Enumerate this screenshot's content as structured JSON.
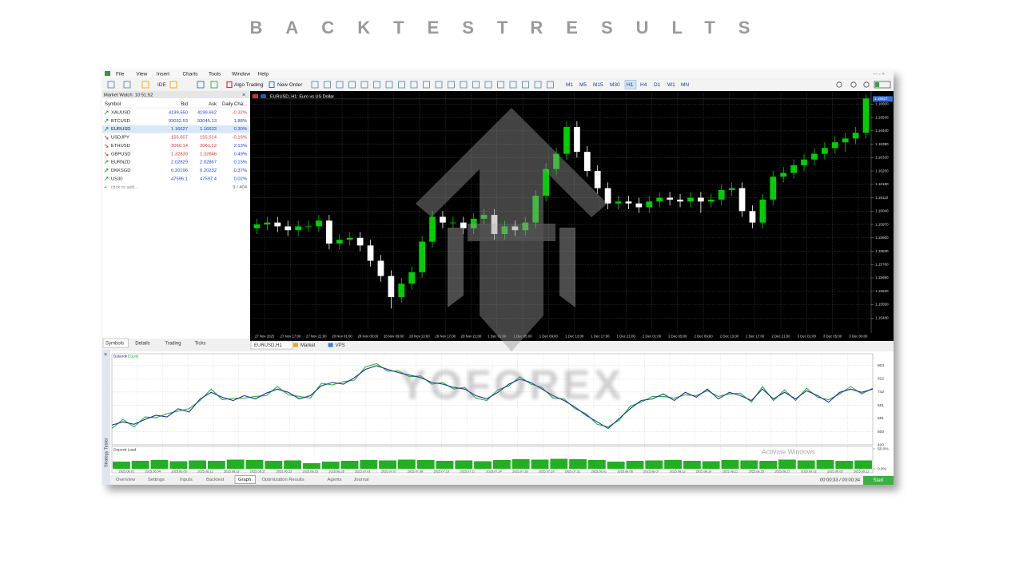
{
  "title": "BACKTEST RESULTS",
  "menu": [
    "File",
    "View",
    "Insert",
    "Charts",
    "Tools",
    "Window",
    "Help"
  ],
  "toolbar": {
    "ide": "IDE",
    "algo": "Algo Trading",
    "order": "New Order",
    "timeframes": [
      "M1",
      "M5",
      "M15",
      "M30",
      "H1",
      "H4",
      "D1",
      "W1",
      "MN"
    ],
    "active_timeframe": 4
  },
  "market_watch": {
    "header": "Market Watch: 10:51:52",
    "columns": [
      "Symbol",
      "Bid",
      "Ask",
      "Daily Cha..."
    ],
    "rows": [
      [
        "XAUUSD",
        "4199.550",
        "4199.662",
        "-0.32%"
      ],
      [
        "BTCUSD",
        "93032.53",
        "93045.13",
        "1.88%"
      ],
      [
        "EURUSD",
        "1.16627",
        "1.16633",
        "0.30%"
      ],
      [
        "USDJPY",
        "155.507",
        "155.514",
        "-0.16%"
      ],
      [
        "ETHUSD",
        "3060.14",
        "3061.12",
        "2.13%"
      ],
      [
        "GBPUSD",
        "1.32839",
        "1.32846",
        "0.49%"
      ],
      [
        "EURNZD",
        "2.02829",
        "2.02867",
        "0.15%"
      ],
      [
        "DKKSGD",
        "0.20196",
        "0.20232",
        "0.37%"
      ],
      [
        "US30",
        "47596.1",
        "47597.4",
        "0.02%"
      ]
    ],
    "directions": [
      "up",
      "up",
      "up",
      "down",
      "down",
      "down",
      "up",
      "up",
      "up"
    ],
    "selected_row": 2,
    "footer": "click to add...",
    "count": "9 / 404",
    "tabs": [
      "Symbols",
      "Details",
      "Trading",
      "Ticks"
    ]
  },
  "chart": {
    "title": "EURUSD, H1: Euro vs US Dollar",
    "current_price": 1.16627,
    "bull_color": "#00d000",
    "bear_color": "#ffffff",
    "ylim": [
      1.1541,
      1.1666
    ],
    "yticks": [
      {
        "value": 1.166,
        "label": "1.16600"
      },
      {
        "value": 1.1653,
        "label": "1.16530"
      },
      {
        "value": 1.1646,
        "label": "1.16460"
      },
      {
        "value": 1.1639,
        "label": "1.16390"
      },
      {
        "value": 1.1632,
        "label": "1.16320"
      },
      {
        "value": 1.1625,
        "label": "1.16250"
      },
      {
        "value": 1.1618,
        "label": "1.16180"
      },
      {
        "value": 1.1611,
        "label": "1.16110"
      },
      {
        "value": 1.1604,
        "label": "1.16040"
      },
      {
        "value": 1.1597,
        "label": "1.15970"
      },
      {
        "value": 1.159,
        "label": "1.15900"
      },
      {
        "value": 1.1583,
        "label": "1.15830"
      },
      {
        "value": 1.1576,
        "label": "1.15760"
      },
      {
        "value": 1.1569,
        "label": "1.15690"
      },
      {
        "value": 1.1562,
        "label": "1.15620"
      },
      {
        "value": 1.1555,
        "label": "1.15550"
      },
      {
        "value": 1.1548,
        "label": "1.15480"
      }
    ],
    "time_labels": [
      "27 Nov 2025",
      "27 Nov 17:00",
      "27 Nov 21:00",
      "28 Nov 01:00",
      "28 Nov 05:00",
      "28 Nov 09:00",
      "28 Nov 13:00",
      "28 Nov 17:00",
      "28 Nov 21:00",
      "1 Dec 01:00",
      "1 Dec 05:00",
      "1 Dec 09:00",
      "1 Dec 13:00",
      "1 Dec 17:00",
      "1 Dec 21:00",
      "2 Dec 01:00",
      "2 Dec 05:00",
      "2 Dec 09:00",
      "2 Dec 13:00",
      "2 Dec 17:00",
      "2 Dec 21:00",
      "3 Dec 01:00",
      "3 Dec 05:00",
      "3 Dec 09:00"
    ],
    "candles": [
      [
        1.1595,
        1.16,
        1.1592,
        1.1597
      ],
      [
        1.1597,
        1.1601,
        1.1594,
        1.1598
      ],
      [
        1.1598,
        1.1601,
        1.1593,
        1.1596
      ],
      [
        1.1596,
        1.1599,
        1.1591,
        1.1594
      ],
      [
        1.1594,
        1.1599,
        1.1591,
        1.1596
      ],
      [
        1.1596,
        1.1599,
        1.1593,
        1.1596
      ],
      [
        1.1596,
        1.1602,
        1.1593,
        1.1599
      ],
      [
        1.1599,
        1.1602,
        1.1584,
        1.1587
      ],
      [
        1.1587,
        1.1592,
        1.1584,
        1.1589
      ],
      [
        1.1589,
        1.1593,
        1.1586,
        1.159
      ],
      [
        1.159,
        1.1593,
        1.1583,
        1.1586
      ],
      [
        1.1586,
        1.1589,
        1.1575,
        1.1578
      ],
      [
        1.1578,
        1.1581,
        1.1567,
        1.157
      ],
      [
        1.157,
        1.1573,
        1.1553,
        1.1559
      ],
      [
        1.1559,
        1.1569,
        1.1556,
        1.1566
      ],
      [
        1.1566,
        1.1575,
        1.1563,
        1.1572
      ],
      [
        1.1572,
        1.1591,
        1.1569,
        1.1588
      ],
      [
        1.1588,
        1.1604,
        1.1585,
        1.1601
      ],
      [
        1.1601,
        1.1604,
        1.1595,
        1.1598
      ],
      [
        1.1598,
        1.1601,
        1.1595,
        1.1598
      ],
      [
        1.1598,
        1.1601,
        1.1592,
        1.1595
      ],
      [
        1.1595,
        1.1603,
        1.1592,
        1.16
      ],
      [
        1.16,
        1.1605,
        1.1597,
        1.1602
      ],
      [
        1.1602,
        1.1605,
        1.1589,
        1.1592
      ],
      [
        1.1592,
        1.1599,
        1.1589,
        1.1596
      ],
      [
        1.1596,
        1.1599,
        1.1591,
        1.1594
      ],
      [
        1.1594,
        1.1601,
        1.1591,
        1.1598
      ],
      [
        1.1598,
        1.1615,
        1.1595,
        1.1612
      ],
      [
        1.1612,
        1.1629,
        1.1609,
        1.1626
      ],
      [
        1.1626,
        1.1637,
        1.1623,
        1.1634
      ],
      [
        1.1634,
        1.1651,
        1.1631,
        1.1648
      ],
      [
        1.1648,
        1.1651,
        1.1632,
        1.1635
      ],
      [
        1.1635,
        1.1638,
        1.1622,
        1.1625
      ],
      [
        1.1625,
        1.1628,
        1.1613,
        1.1616
      ],
      [
        1.1616,
        1.1619,
        1.1605,
        1.1608
      ],
      [
        1.1608,
        1.1612,
        1.1605,
        1.1609
      ],
      [
        1.1609,
        1.1612,
        1.1605,
        1.1608
      ],
      [
        1.1608,
        1.1611,
        1.1603,
        1.1606
      ],
      [
        1.1606,
        1.1612,
        1.1603,
        1.1609
      ],
      [
        1.1609,
        1.1614,
        1.1606,
        1.1611
      ],
      [
        1.1611,
        1.1614,
        1.1607,
        1.161
      ],
      [
        1.161,
        1.1613,
        1.1606,
        1.1609
      ],
      [
        1.1609,
        1.1614,
        1.1606,
        1.1611
      ],
      [
        1.1611,
        1.1614,
        1.1603,
        1.1609
      ],
      [
        1.1609,
        1.1613,
        1.1606,
        1.161
      ],
      [
        1.161,
        1.1618,
        1.1607,
        1.1615
      ],
      [
        1.1615,
        1.1619,
        1.1612,
        1.1616
      ],
      [
        1.1616,
        1.1619,
        1.1601,
        1.1604
      ],
      [
        1.1604,
        1.1607,
        1.1595,
        1.1598
      ],
      [
        1.1598,
        1.1613,
        1.1595,
        1.161
      ],
      [
        1.161,
        1.1625,
        1.1607,
        1.1622
      ],
      [
        1.1622,
        1.1627,
        1.1619,
        1.1624
      ],
      [
        1.1624,
        1.1631,
        1.1621,
        1.1628
      ],
      [
        1.1628,
        1.1634,
        1.1625,
        1.1631
      ],
      [
        1.1631,
        1.1637,
        1.1628,
        1.1634
      ],
      [
        1.1634,
        1.164,
        1.1631,
        1.1637
      ],
      [
        1.1637,
        1.1643,
        1.1634,
        1.164
      ],
      [
        1.164,
        1.1645,
        1.1635,
        1.1642
      ],
      [
        1.1642,
        1.1648,
        1.1639,
        1.1645
      ],
      [
        1.1645,
        1.1665,
        1.1642,
        1.1663
      ]
    ]
  },
  "chart_tabs": [
    "EURUSD,H1",
    "Market",
    "VPS"
  ],
  "tester": {
    "side_label": "Strategy Tester",
    "series": [
      {
        "name": "Balance",
        "color": "#1c2fa8",
        "values": [
          540,
          560,
          545,
          575,
          600,
          590,
          640,
          620,
          700,
          740,
          710,
          690,
          720,
          700,
          735,
          760,
          740,
          700,
          720,
          780,
          800,
          790,
          830,
          880,
          903,
          880,
          860,
          845,
          830,
          800,
          790,
          770,
          760,
          720,
          700,
          740,
          790,
          820,
          800,
          760,
          720,
          690,
          650,
          600,
          560,
          520,
          580,
          640,
          690,
          700,
          730,
          690,
          740,
          710,
          760,
          700,
          740,
          720,
          690,
          760,
          700,
          740,
          700,
          750,
          720,
          680,
          740,
          760,
          740,
          760
        ]
      },
      {
        "name": "Equity",
        "color": "#1fb534",
        "values": [
          520,
          575,
          530,
          590,
          585,
          610,
          625,
          640,
          690,
          760,
          695,
          705,
          705,
          715,
          720,
          775,
          725,
          715,
          705,
          795,
          785,
          805,
          815,
          895,
          915,
          870,
          870,
          835,
          840,
          790,
          800,
          760,
          770,
          705,
          690,
          755,
          780,
          835,
          790,
          770,
          705,
          700,
          640,
          610,
          545,
          530,
          570,
          655,
          680,
          715,
          715,
          705,
          725,
          720,
          750,
          715,
          730,
          735,
          680,
          775,
          690,
          755,
          690,
          765,
          710,
          695,
          730,
          775,
          730,
          765
        ]
      }
    ],
    "ylim": [
      420,
      975
    ],
    "yticks": [
      903,
      822,
      742,
      661,
      581,
      500,
      420
    ],
    "load_title": "Deposit Load",
    "load_ylim": [
      0,
      50
    ],
    "load_yticks": [
      {
        "value": 50,
        "label": "50.0%"
      },
      {
        "value": 0,
        "label": "0.0%"
      }
    ],
    "load_color": "#22b022",
    "load_values": [
      18,
      20,
      22,
      19,
      21,
      20,
      23,
      22,
      20,
      21,
      14,
      18,
      20,
      22,
      21,
      23,
      22,
      20,
      21,
      19,
      22,
      24,
      23,
      25,
      24,
      22,
      18,
      20,
      21,
      22,
      20,
      19,
      22,
      21,
      20,
      23,
      21,
      22,
      20,
      21
    ],
    "dates": [
      "2025.06.01",
      "2025.06.04",
      "2025.06.06",
      "2025.06.12",
      "2025.06.13",
      "2025.06.17",
      "2025.06.23",
      "2025.06.25",
      "2025.06.26",
      "2025.07.01",
      "2025.07.07",
      "2025.07.08",
      "2025.07.10",
      "2025.07.17",
      "2025.07.24",
      "2025.07.28",
      "2025.07.29",
      "2025.07.31",
      "2025.08.01",
      "2025.08.06",
      "2025.08.07",
      "2025.08.13",
      "2025.08.19",
      "2025.08.21",
      "2025.08.25",
      "2025.08.27",
      "2025.09.02",
      "2025.09.05",
      "2025.09.11"
    ],
    "tabs": [
      "Overview",
      "Settings",
      "Inputs",
      "Backtest",
      "Graph",
      "Optimization Results",
      "Agents",
      "Journal"
    ],
    "active_tab": 4,
    "timer": "00:00:33 / 00:00:34",
    "start": "Start"
  },
  "watermark": "YOFOREX",
  "activation": "Activate Windows"
}
